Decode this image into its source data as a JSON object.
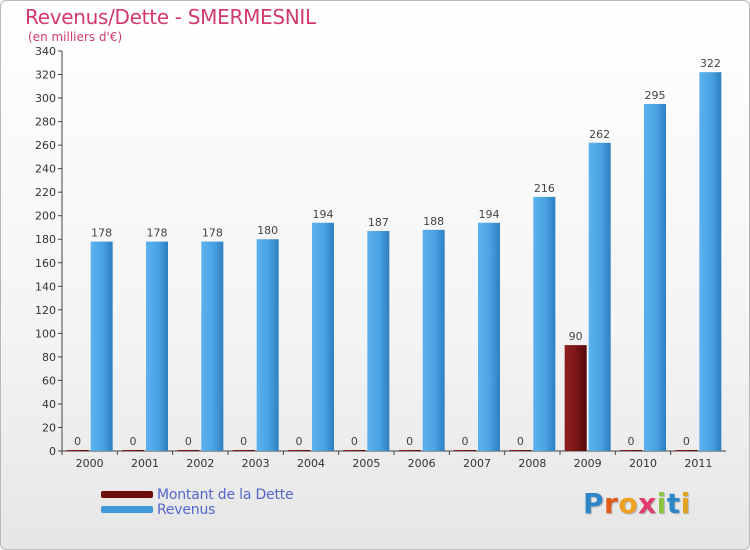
{
  "title": "Revenus/Dette - SMERMESNIL",
  "subtitle": "(en milliers d'€)",
  "colors": {
    "title": "#d13a6a",
    "dette": "#7a1414",
    "revenus": "#3f98d8",
    "axis": "#333333",
    "grid": "#d6d6d6",
    "legend_text": "#5566cc"
  },
  "legend": [
    {
      "label": "Montant de la Dette",
      "color": "#6e0f0f"
    },
    {
      "label": "Revenus",
      "color": "#3f98d8"
    }
  ],
  "logo": {
    "letters": [
      "P",
      "r",
      "o",
      "x",
      "i",
      "t",
      "i"
    ],
    "colors": [
      "#2d86c8",
      "#e05a1a",
      "#f0a020",
      "#e23c6e",
      "#8cc63f",
      "#2d86c8",
      "#e0a020"
    ]
  },
  "chart_data": {
    "type": "bar",
    "title": "Revenus/Dette - SMERMESNIL",
    "ylabel": "(en milliers d'€)",
    "xlabel": "",
    "ylim": [
      0,
      340
    ],
    "ytick_step": 20,
    "grid": false,
    "legend_placement": "bottom-left",
    "categories": [
      "2000",
      "2001",
      "2002",
      "2003",
      "2004",
      "2005",
      "2006",
      "2007",
      "2008",
      "2009",
      "2010",
      "2011"
    ],
    "series": [
      {
        "name": "Montant de la Dette",
        "values": [
          0,
          0,
          0,
          0,
          0,
          0,
          0,
          0,
          0,
          90,
          0,
          0
        ]
      },
      {
        "name": "Revenus",
        "values": [
          178,
          178,
          178,
          180,
          194,
          187,
          188,
          194,
          216,
          262,
          295,
          322
        ]
      }
    ]
  }
}
